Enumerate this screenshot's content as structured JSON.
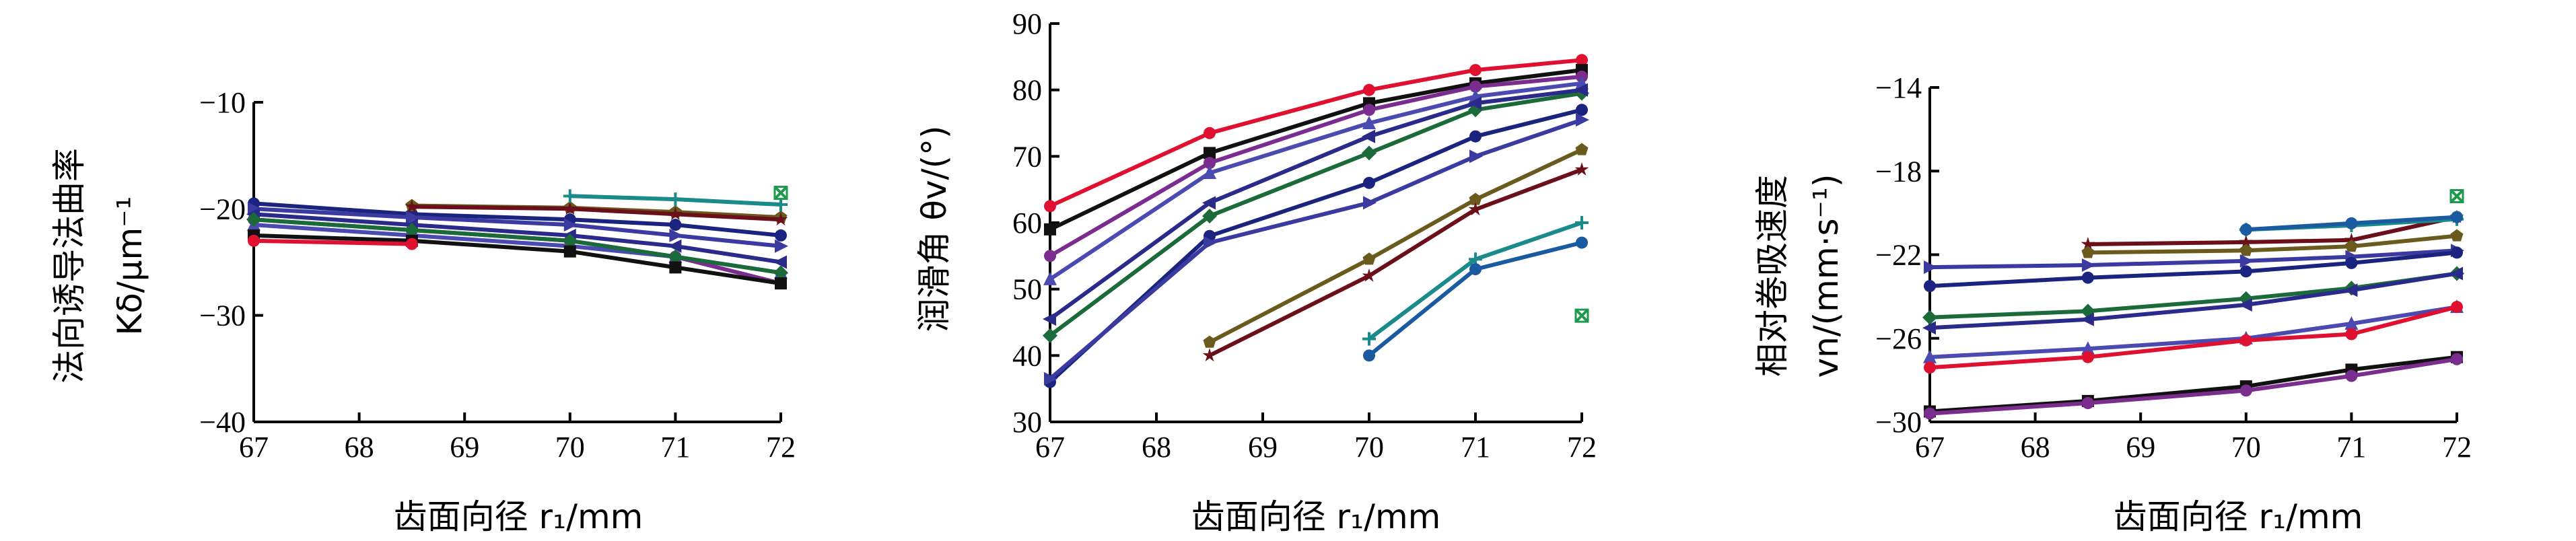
{
  "chart_data": [
    {
      "type": "line",
      "ylabel_line1": "法向诱导法曲率",
      "ylabel_line2": "Kδ/μm⁻¹",
      "xlabel": "齿面向径 r₁/mm",
      "xlim": [
        67,
        72
      ],
      "ylim": [
        -40,
        -10
      ],
      "xticks": [
        67,
        68,
        69,
        70,
        71,
        72
      ],
      "yticks": [
        -40,
        -30,
        -20,
        -10
      ],
      "ytick_labels": [
        "−40",
        "−30",
        "−20",
        "−10"
      ],
      "series": [
        {
          "color": "#1a237e",
          "marker": "circle",
          "x": [
            67,
            68.5,
            70,
            71,
            72
          ],
          "y": [
            -19.5,
            -20.5,
            -21,
            -21.5,
            -22.5
          ]
        },
        {
          "color": "#7b2d8f",
          "marker": "circle",
          "x": [
            67,
            68.5,
            70,
            71,
            72
          ],
          "y": [
            -21,
            -22,
            -23,
            -24.5,
            -27
          ]
        },
        {
          "color": "#3a3aa0",
          "marker": "triangle-right",
          "x": [
            67,
            68.5,
            70,
            71,
            72
          ],
          "y": [
            -20,
            -20.8,
            -21.5,
            -22.5,
            -23.5
          ]
        },
        {
          "color": "#2a2a8a",
          "marker": "triangle-left",
          "x": [
            67,
            68.5,
            70,
            71,
            72
          ],
          "y": [
            -20.5,
            -21.5,
            -22.5,
            -23.5,
            -25
          ]
        },
        {
          "color": "#4a4ab0",
          "marker": "triangle-up",
          "x": [
            67,
            68.5,
            70,
            71,
            72
          ],
          "y": [
            -21.5,
            -22.5,
            -23.5,
            -24.5,
            -26
          ]
        },
        {
          "color": "#1b6b3a",
          "marker": "diamond",
          "x": [
            67,
            68.5,
            70,
            71,
            72
          ],
          "y": [
            -21,
            -22,
            -23,
            -24.5,
            -26
          ]
        },
        {
          "color": "#111111",
          "marker": "square",
          "x": [
            67,
            68.5,
            70,
            71,
            72
          ],
          "y": [
            -22.5,
            -23,
            -24,
            -25.5,
            -27
          ]
        },
        {
          "color": "#e01030",
          "marker": "circle",
          "x": [
            67,
            68.5
          ],
          "y": [
            -23,
            -23.3
          ]
        },
        {
          "color": "#6b5a1e",
          "marker": "pentagon",
          "x": [
            68.5,
            70,
            71,
            72
          ],
          "y": [
            -19.7,
            -19.9,
            -20.3,
            -20.8
          ]
        },
        {
          "color": "#6b0f1a",
          "marker": "star",
          "x": [
            68.5,
            70,
            71,
            72
          ],
          "y": [
            -19.8,
            -20,
            -20.5,
            -21
          ]
        },
        {
          "color": "#1a8a8a",
          "marker": "plus",
          "x": [
            70,
            71,
            72
          ],
          "y": [
            -18.8,
            -19.1,
            -19.6
          ]
        },
        {
          "color": "#1e9a4e",
          "marker": "x-square",
          "x": [
            72
          ],
          "y": [
            -18.5
          ]
        }
      ]
    },
    {
      "type": "line",
      "ylabel": "润滑角 θv/(°)",
      "xlabel": "齿面向径 r₁/mm",
      "xlim": [
        67,
        72
      ],
      "ylim": [
        30,
        90
      ],
      "xticks": [
        67,
        68,
        69,
        70,
        71,
        72
      ],
      "yticks": [
        30,
        40,
        50,
        60,
        70,
        80,
        90
      ],
      "ytick_labels": [
        "30",
        "40",
        "50",
        "60",
        "70",
        "80",
        "90"
      ],
      "series": [
        {
          "color": "#e01030",
          "marker": "circle",
          "x": [
            67,
            68.5,
            70,
            71,
            72
          ],
          "y": [
            62.5,
            73.5,
            80,
            83,
            84.5
          ]
        },
        {
          "color": "#111111",
          "marker": "square",
          "x": [
            67,
            68.5,
            70,
            71,
            72
          ],
          "y": [
            59,
            70.5,
            78,
            81,
            83
          ]
        },
        {
          "color": "#7b2d8f",
          "marker": "circle",
          "x": [
            67,
            68.5,
            70,
            71,
            72
          ],
          "y": [
            55,
            69,
            77,
            80.5,
            82
          ]
        },
        {
          "color": "#4a4ab0",
          "marker": "triangle-up",
          "x": [
            67,
            68.5,
            70,
            71,
            72
          ],
          "y": [
            51.5,
            67.5,
            75,
            79,
            81
          ]
        },
        {
          "color": "#1a237e",
          "marker": "circle",
          "x": [
            67,
            68.5,
            70,
            71,
            72
          ],
          "y": [
            36,
            58,
            66,
            73,
            77
          ]
        },
        {
          "color": "#1b6b3a",
          "marker": "diamond",
          "x": [
            67,
            68.5,
            70,
            71,
            72
          ],
          "y": [
            43,
            61,
            70.5,
            77,
            79.5
          ]
        },
        {
          "color": "#2a2a8a",
          "marker": "triangle-left",
          "x": [
            67,
            68.5,
            70,
            71,
            72
          ],
          "y": [
            45.5,
            63,
            73,
            78,
            80
          ]
        },
        {
          "color": "#3a3aa0",
          "marker": "triangle-right",
          "x": [
            67,
            68.5,
            70,
            71,
            72
          ],
          "y": [
            36.5,
            57,
            63,
            70,
            75.5
          ]
        },
        {
          "color": "#6b5a1e",
          "marker": "pentagon",
          "x": [
            68.5,
            70,
            71,
            72
          ],
          "y": [
            42,
            54.5,
            63.5,
            71
          ]
        },
        {
          "color": "#6b0f1a",
          "marker": "star",
          "x": [
            68.5,
            70,
            71,
            72
          ],
          "y": [
            40,
            52,
            62,
            68
          ]
        },
        {
          "color": "#1a8a8a",
          "marker": "plus",
          "x": [
            70,
            71,
            72
          ],
          "y": [
            42.5,
            54.5,
            60
          ]
        },
        {
          "color": "#1a5aa0",
          "marker": "circle",
          "x": [
            70,
            71,
            72
          ],
          "y": [
            40,
            53,
            57
          ]
        },
        {
          "color": "#1e9a4e",
          "marker": "x-square",
          "x": [
            72
          ],
          "y": [
            46
          ]
        }
      ]
    },
    {
      "type": "line",
      "ylabel_line1": "相对卷吸速度",
      "ylabel_line2": "vn/(mm·s⁻¹)",
      "xlabel": "齿面向径 r₁/mm",
      "xlim": [
        67,
        72
      ],
      "ylim": [
        -30,
        -14
      ],
      "xticks": [
        67,
        68,
        69,
        70,
        71,
        72
      ],
      "yticks": [
        -30,
        -26,
        -22,
        -18,
        -14
      ],
      "ytick_labels": [
        "−30",
        "−26",
        "−22",
        "−18",
        "−14"
      ],
      "series": [
        {
          "color": "#3a3aa0",
          "marker": "triangle-right",
          "x": [
            67,
            68.5,
            70,
            71,
            72
          ],
          "y": [
            -22.6,
            -22.5,
            -22.3,
            -22.1,
            -21.8
          ]
        },
        {
          "color": "#1a237e",
          "marker": "circle",
          "x": [
            67,
            68.5,
            70,
            71,
            72
          ],
          "y": [
            -23.5,
            -23.1,
            -22.8,
            -22.4,
            -21.9
          ]
        },
        {
          "color": "#1b6b3a",
          "marker": "diamond",
          "x": [
            67,
            68.5,
            70,
            71,
            72
          ],
          "y": [
            -25,
            -24.7,
            -24.1,
            -23.6,
            -22.9
          ]
        },
        {
          "color": "#2a2a8a",
          "marker": "triangle-left",
          "x": [
            67,
            68.5,
            70,
            71,
            72
          ],
          "y": [
            -25.5,
            -25.1,
            -24.4,
            -23.7,
            -22.9
          ]
        },
        {
          "color": "#4a4ab0",
          "marker": "triangle-up",
          "x": [
            67,
            68.5,
            70,
            71,
            72
          ],
          "y": [
            -26.9,
            -26.5,
            -26,
            -25.3,
            -24.5
          ]
        },
        {
          "color": "#e01030",
          "marker": "circle",
          "x": [
            67,
            68.5,
            70,
            71,
            72
          ],
          "y": [
            -27.4,
            -26.9,
            -26.1,
            -25.8,
            -24.5
          ]
        },
        {
          "color": "#111111",
          "marker": "square",
          "x": [
            67,
            68.5,
            70,
            71,
            72
          ],
          "y": [
            -29.5,
            -29,
            -28.3,
            -27.5,
            -26.9
          ]
        },
        {
          "color": "#7b2d8f",
          "marker": "circle",
          "x": [
            67,
            68.5,
            70,
            71,
            72
          ],
          "y": [
            -29.6,
            -29.1,
            -28.5,
            -27.8,
            -27
          ]
        },
        {
          "color": "#6b0f1a",
          "marker": "star",
          "x": [
            68.5,
            70,
            71,
            72
          ],
          "y": [
            -21.5,
            -21.4,
            -21.3,
            -20.2
          ]
        },
        {
          "color": "#6b5a1e",
          "marker": "pentagon",
          "x": [
            68.5,
            70,
            71,
            72
          ],
          "y": [
            -21.9,
            -21.8,
            -21.6,
            -21.1
          ]
        },
        {
          "color": "#1a8a8a",
          "marker": "plus",
          "x": [
            70,
            71,
            72
          ],
          "y": [
            -20.8,
            -20.6,
            -20.3
          ]
        },
        {
          "color": "#1a5aa0",
          "marker": "circle",
          "x": [
            70,
            71,
            72
          ],
          "y": [
            -20.8,
            -20.5,
            -20.2
          ]
        },
        {
          "color": "#1e9a4e",
          "marker": "x-square",
          "x": [
            72
          ],
          "y": [
            -19.2
          ]
        }
      ]
    }
  ]
}
